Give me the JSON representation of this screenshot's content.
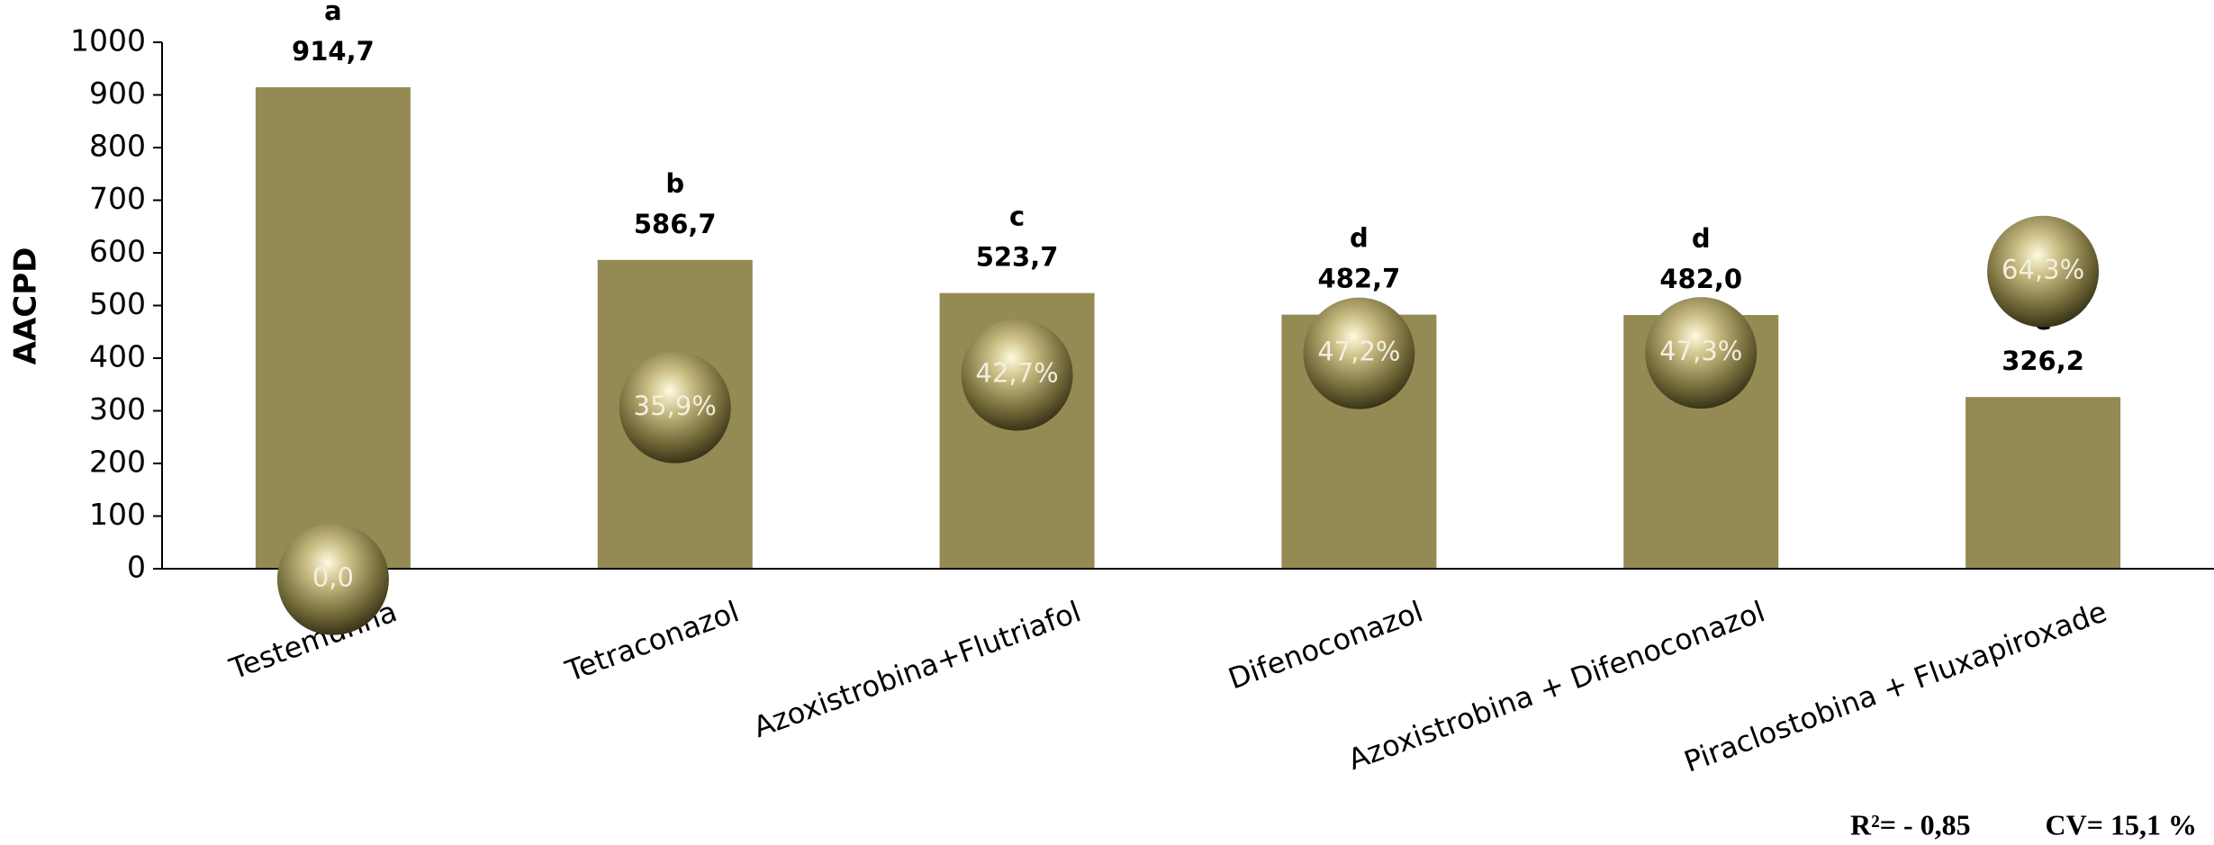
{
  "chart_data": {
    "type": "bar",
    "y_label": "AACPD",
    "categories": [
      "Testemunha",
      "Tetraconazol",
      "Azoxistrobina+Flutriafol",
      "Difenoconazol",
      "Azoxistrobina + Difenoconazol",
      "Piraclostobina + Fluxapiroxade"
    ],
    "series": [
      {
        "type": "bar",
        "color": "#948a54",
        "values": [
          914.7,
          586.7,
          523.7,
          482.7,
          482.0,
          326.2
        ],
        "value_labels": [
          "914,7",
          "586,7",
          "523,7",
          "482,7",
          "482,0",
          "326,2"
        ],
        "letters": [
          "a",
          "b",
          "c",
          "d",
          "d",
          "e"
        ]
      },
      {
        "type": "bubble",
        "axis": "y2",
        "color": "#b5a86a",
        "values": [
          0,
          35.9,
          42.7,
          47.2,
          47.3,
          64.3
        ],
        "value_labels": [
          "0,0",
          "35,9%",
          "42,7%",
          "47,2%",
          "47,3%",
          "64,3%"
        ]
      }
    ],
    "ylim": [
      0,
      1000
    ],
    "yticks": [
      0,
      100,
      200,
      300,
      400,
      500,
      600,
      700,
      800,
      900,
      1000
    ],
    "y2lim": [
      2.2,
      112.2
    ],
    "footer": [
      "R²= - 0,85",
      "CV= 15,1 %"
    ]
  }
}
